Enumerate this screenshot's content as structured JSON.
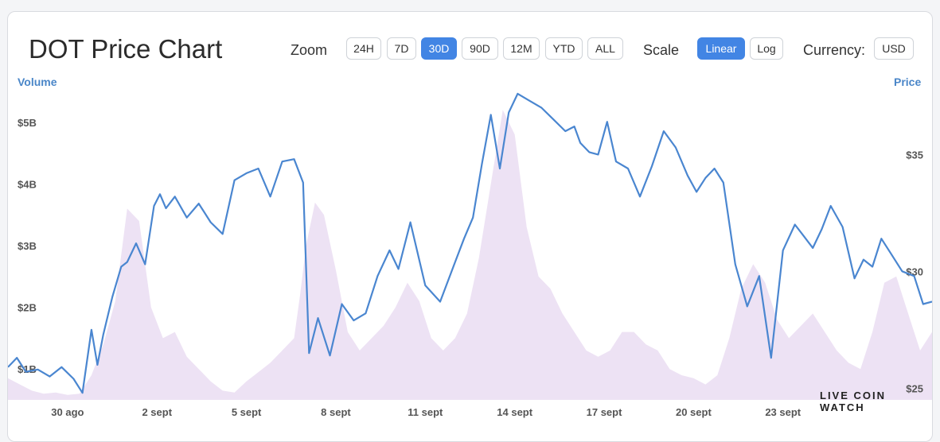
{
  "header": {
    "title": "DOT Price Chart",
    "zoom_label": "Zoom",
    "zoom_options": [
      "24H",
      "7D",
      "30D",
      "90D",
      "12M",
      "YTD",
      "ALL"
    ],
    "zoom_selected": "30D",
    "scale_label": "Scale",
    "scale_options": [
      "Linear",
      "Log"
    ],
    "scale_selected": "Linear",
    "currency_label": "Currency:",
    "currency_value": "USD"
  },
  "watermark": "LIVE COIN WATCH",
  "colors": {
    "price_line": "#4a86d0",
    "volume_fill": "#ede2f4",
    "active_button": "#4285e4",
    "axis_title": "#4a86c8"
  },
  "chart_data": {
    "type": "line",
    "title": "DOT Price Chart",
    "x_tick_labels": [
      "30 ago",
      "2 sept",
      "5 sept",
      "8 sept",
      "11 sept",
      "14 sept",
      "17 sept",
      "20 sept",
      "23 sept"
    ],
    "x_range_days": [
      28,
      59
    ],
    "left_axis": {
      "label": "Volume",
      "ticks": [
        "$1B",
        "$2B",
        "$3B",
        "$4B",
        "$5B"
      ],
      "tick_values": [
        1,
        2,
        3,
        4,
        5
      ],
      "unit": "B USD",
      "ylim": [
        0.5,
        5.5
      ]
    },
    "right_axis": {
      "label": "Price",
      "ticks": [
        "$25",
        "$30",
        "$35"
      ],
      "tick_values": [
        25,
        30,
        35
      ],
      "unit": "USD",
      "ylim": [
        24.5,
        37.7
      ]
    },
    "grid": false,
    "series": [
      {
        "name": "Price",
        "axis": "right",
        "x": [
          28.0,
          28.3,
          28.6,
          29.0,
          29.4,
          29.8,
          30.2,
          30.5,
          30.8,
          31.0,
          31.2,
          31.5,
          31.8,
          32.0,
          32.3,
          32.6,
          32.9,
          33.1,
          33.3,
          33.6,
          34.0,
          34.4,
          34.8,
          35.2,
          35.6,
          36.0,
          36.4,
          36.8,
          37.2,
          37.6,
          37.9,
          38.1,
          38.4,
          38.8,
          39.2,
          39.6,
          40.0,
          40.4,
          40.8,
          41.1,
          41.5,
          42.0,
          42.5,
          43.0,
          43.3,
          43.6,
          43.9,
          44.2,
          44.5,
          44.8,
          45.1,
          45.5,
          45.9,
          46.3,
          46.7,
          47.0,
          47.2,
          47.5,
          47.8,
          48.1,
          48.4,
          48.8,
          49.2,
          49.6,
          50.0,
          50.4,
          50.8,
          51.1,
          51.4,
          51.7,
          52.0,
          52.4,
          52.8,
          53.2,
          53.6,
          54.0,
          54.4,
          54.7,
          55.0,
          55.3,
          55.6,
          56.0,
          56.4,
          56.7,
          57.0,
          57.3,
          57.6,
          58.0,
          58.4,
          58.7,
          59.0
        ],
        "values": [
          25.9,
          26.3,
          25.7,
          25.8,
          25.5,
          25.9,
          25.4,
          24.8,
          27.5,
          26.0,
          27.3,
          28.9,
          30.2,
          30.4,
          31.2,
          30.3,
          32.8,
          33.3,
          32.7,
          33.2,
          32.3,
          32.9,
          32.1,
          31.6,
          33.9,
          34.2,
          34.4,
          33.2,
          34.7,
          34.8,
          33.8,
          26.5,
          28.0,
          26.4,
          28.6,
          27.9,
          28.2,
          29.8,
          30.9,
          30.1,
          32.1,
          29.4,
          28.7,
          30.4,
          31.4,
          32.3,
          34.6,
          36.7,
          34.4,
          36.8,
          37.6,
          37.3,
          37.0,
          36.5,
          36.0,
          36.2,
          35.5,
          35.1,
          35.0,
          36.4,
          34.7,
          34.4,
          33.2,
          34.5,
          36.0,
          35.3,
          34.1,
          33.4,
          34.0,
          34.4,
          33.8,
          30.3,
          28.5,
          29.8,
          26.3,
          30.9,
          32.0,
          31.5,
          31.0,
          31.8,
          32.8,
          31.9,
          29.7,
          30.5,
          30.2,
          31.4,
          30.8,
          30.0,
          29.8,
          28.6,
          28.7
        ]
      },
      {
        "name": "Volume",
        "axis": "left",
        "x": [
          28.0,
          28.4,
          28.8,
          29.2,
          29.6,
          30.0,
          30.4,
          30.8,
          31.2,
          31.6,
          32.0,
          32.4,
          32.8,
          33.2,
          33.6,
          34.0,
          34.4,
          34.8,
          35.2,
          35.6,
          36.0,
          36.4,
          36.8,
          37.2,
          37.6,
          37.8,
          38.0,
          38.3,
          38.6,
          39.0,
          39.4,
          39.8,
          40.2,
          40.6,
          41.0,
          41.4,
          41.8,
          42.2,
          42.6,
          43.0,
          43.4,
          43.8,
          44.2,
          44.6,
          45.0,
          45.4,
          45.8,
          46.2,
          46.6,
          47.0,
          47.4,
          47.8,
          48.2,
          48.6,
          49.0,
          49.4,
          49.8,
          50.2,
          50.6,
          51.0,
          51.4,
          51.8,
          52.2,
          52.6,
          53.0,
          53.4,
          53.8,
          54.2,
          54.6,
          55.0,
          55.4,
          55.8,
          56.2,
          56.6,
          57.0,
          57.4,
          57.8,
          58.2,
          58.6,
          59.0
        ],
        "values": [
          0.85,
          0.75,
          0.65,
          0.6,
          0.62,
          0.58,
          0.6,
          0.9,
          1.4,
          2.1,
          3.6,
          3.4,
          2.0,
          1.5,
          1.6,
          1.2,
          1.0,
          0.8,
          0.65,
          0.62,
          0.8,
          0.95,
          1.1,
          1.3,
          1.5,
          2.2,
          3.0,
          3.7,
          3.5,
          2.6,
          1.6,
          1.3,
          1.5,
          1.7,
          2.0,
          2.4,
          2.1,
          1.5,
          1.3,
          1.5,
          1.9,
          2.8,
          4.0,
          5.2,
          4.8,
          3.3,
          2.5,
          2.3,
          1.9,
          1.6,
          1.3,
          1.2,
          1.3,
          1.6,
          1.6,
          1.4,
          1.3,
          1.0,
          0.9,
          0.85,
          0.75,
          0.9,
          1.5,
          2.3,
          2.7,
          2.4,
          1.8,
          1.5,
          1.7,
          1.9,
          1.6,
          1.3,
          1.1,
          1.0,
          1.6,
          2.4,
          2.5,
          1.9,
          1.3,
          1.6
        ]
      }
    ]
  }
}
